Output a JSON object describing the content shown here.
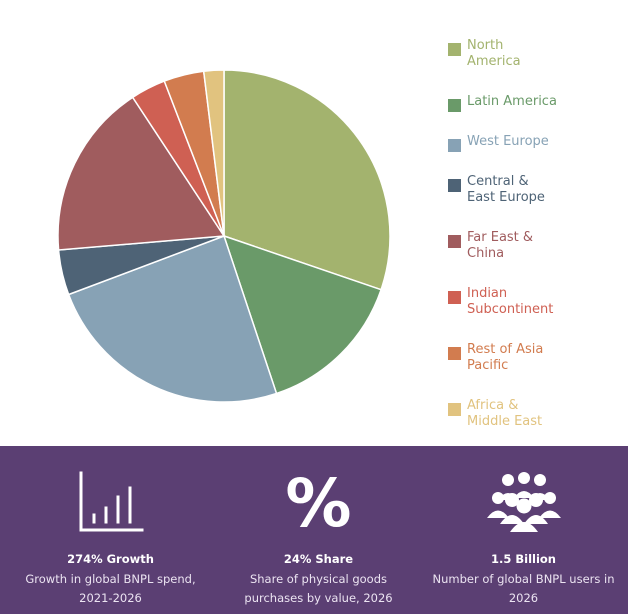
{
  "chart_data": {
    "type": "pie",
    "categories": [
      "North America",
      "Latin America",
      "West Europe",
      "Central & East Europe",
      "Far East & China",
      "Indian Subcontinent",
      "Rest of Asia Pacific",
      "Africa & Middle East"
    ],
    "values": [
      31,
      15,
      25,
      4.5,
      17.5,
      3.5,
      4,
      2
    ],
    "colors": [
      "#a3b36e",
      "#6a9a69",
      "#87a2b5",
      "#4e6376",
      "#a05c5e",
      "#cf6053",
      "#d27c4f",
      "#e1c37f"
    ],
    "legend_position": "right"
  },
  "legend": {
    "items": [
      {
        "line1": "North",
        "line2": "America",
        "color": "#a3b36e"
      },
      {
        "line1": "Latin America",
        "line2": "",
        "color": "#6a9a69"
      },
      {
        "line1": "West Europe",
        "line2": "",
        "color": "#87a2b5"
      },
      {
        "line1": "Central &",
        "line2": "East Europe",
        "color": "#4e6376"
      },
      {
        "line1": "Far East &",
        "line2": "China",
        "color": "#a05c5e"
      },
      {
        "line1": "Indian",
        "line2": "Subcontinent",
        "color": "#cf6053"
      },
      {
        "line1": "Rest of Asia",
        "line2": "Pacific",
        "color": "#d27c4f"
      },
      {
        "line1": "Africa &",
        "line2": "Middle East",
        "color": "#e1c37f"
      }
    ]
  },
  "stats": {
    "background": "#5b3f73",
    "items": [
      {
        "icon": "bar-chart-icon",
        "title": "274% Growth",
        "desc": "Growth in global BNPL spend, 2021-2026"
      },
      {
        "icon": "percent-icon",
        "glyph": "%",
        "title": "24% Share",
        "desc": "Share of physical goods purchases by value, 2026"
      },
      {
        "icon": "people-group-icon",
        "title": "1.5 Billion",
        "desc": "Number of global BNPL users in 2026"
      }
    ]
  }
}
